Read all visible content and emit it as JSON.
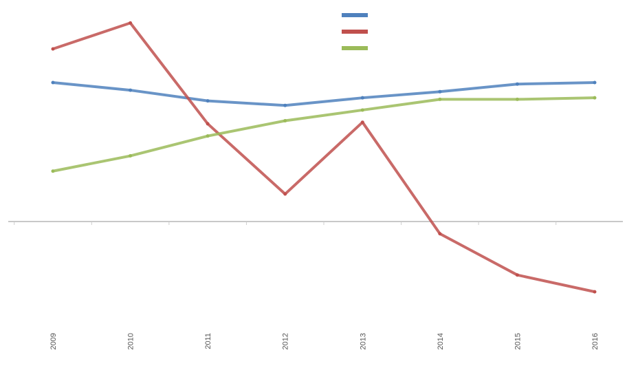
{
  "chart_data": {
    "type": "line",
    "title": "",
    "xlabel": "",
    "ylabel": "",
    "categories": [
      "2009",
      "2010",
      "2011",
      "2012",
      "2013",
      "2014",
      "2015",
      "2016"
    ],
    "ylim": [
      -6,
      18
    ],
    "zero_line": true,
    "grid": false,
    "legend_position": "top-center",
    "series": [
      {
        "name": "",
        "color": "#4f81bd",
        "values": [
          9.1,
          8.6,
          7.9,
          7.6,
          8.1,
          8.5,
          9.0,
          9.1
        ],
        "labels": [
          "",
          "",
          "",
          "",
          "",
          "",
          "",
          ""
        ]
      },
      {
        "name": "",
        "color": "#c0504d",
        "values": [
          11.3,
          13.0,
          6.4,
          1.8,
          6.5,
          -0.8,
          -3.5,
          -4.6
        ],
        "labels": [
          "",
          "",
          "",
          "",
          "",
          "",
          "",
          ""
        ]
      },
      {
        "name": "",
        "color": "#9bbb59",
        "values": [
          3.3,
          4.3,
          5.6,
          6.6,
          7.3,
          8.0,
          8.0,
          8.1
        ],
        "labels": [
          "",
          "",
          "",
          "",
          "",
          "",
          "",
          ""
        ]
      }
    ]
  }
}
